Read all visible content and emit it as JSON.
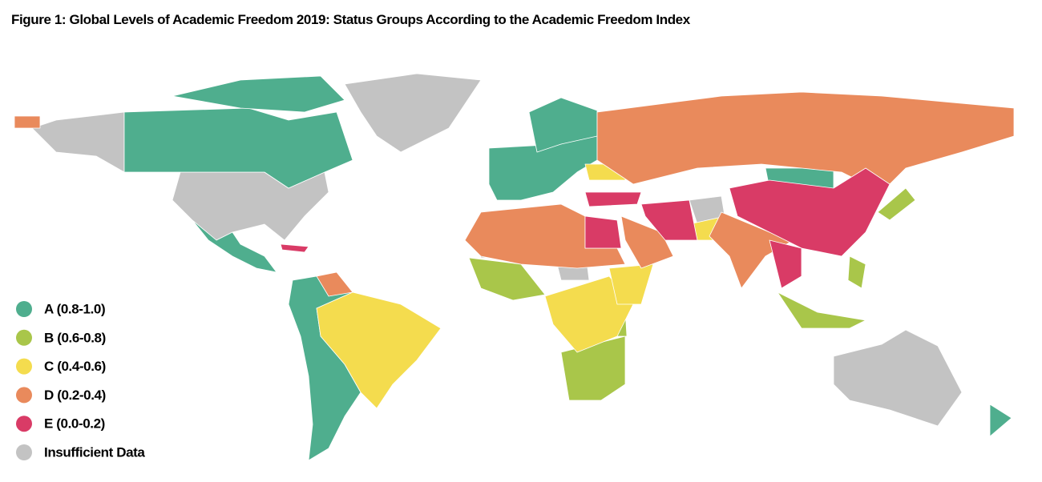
{
  "title": "Figure 1: Global Levels of Academic Freedom 2019: Status Groups According to the Academic Freedom Index",
  "legend": [
    {
      "label": "A (0.8-1.0)",
      "color": "#4fae8e"
    },
    {
      "label": "B (0.6-0.8)",
      "color": "#a9c64a"
    },
    {
      "label": "C (0.4-0.6)",
      "color": "#f4dc4e"
    },
    {
      "label": "D (0.2-0.4)",
      "color": "#e98a5c"
    },
    {
      "label": "E (0.0-0.2)",
      "color": "#d93b66"
    },
    {
      "label": "Insufficient Data",
      "color": "#c3c3c3"
    }
  ]
}
